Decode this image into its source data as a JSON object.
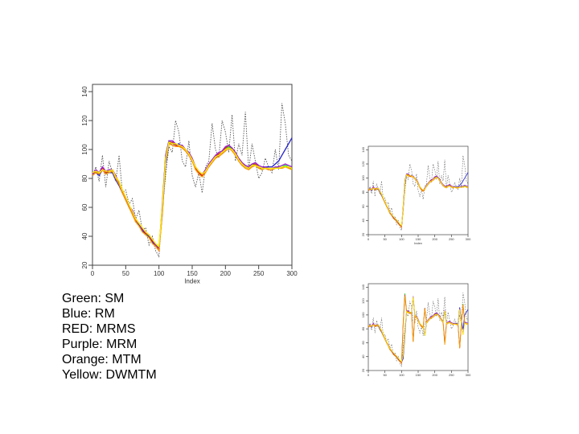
{
  "chart_data": [
    {
      "type": "line",
      "xlabel": "Index",
      "ylabel": "",
      "xlim": [
        0,
        300
      ],
      "ylim": [
        20,
        145
      ],
      "xticks": [
        0,
        50,
        100,
        150,
        200,
        250,
        300
      ],
      "yticks": [
        20,
        40,
        60,
        80,
        100,
        120,
        140
      ],
      "grid": false,
      "raw_series": {
        "color": "#555555",
        "x": [
          0,
          5,
          10,
          15,
          20,
          25,
          30,
          35,
          40,
          45,
          50,
          55,
          60,
          65,
          70,
          75,
          80,
          85,
          90,
          95,
          100,
          105,
          110,
          115,
          120,
          125,
          130,
          135,
          140,
          145,
          150,
          155,
          160,
          165,
          170,
          175,
          180,
          185,
          190,
          195,
          200,
          205,
          210,
          215,
          220,
          225,
          230,
          235,
          240,
          245,
          250,
          255,
          260,
          265,
          270,
          275,
          280,
          285,
          290,
          295,
          300
        ],
        "y": [
          82,
          88,
          78,
          96,
          74,
          92,
          84,
          78,
          96,
          70,
          72,
          62,
          66,
          52,
          58,
          44,
          46,
          34,
          40,
          30,
          26,
          58,
          82,
          102,
          98,
          120,
          112,
          92,
          88,
          106,
          82,
          74,
          84,
          70,
          88,
          92,
          118,
          100,
          94,
          120,
          112,
          98,
          124,
          92,
          104,
          96,
          126,
          86,
          104,
          92,
          80,
          84,
          94,
          88,
          84,
          100,
          86,
          132,
          118,
          96,
          92
        ]
      },
      "series": [
        {
          "name": "SM",
          "color": "#22cc22",
          "values": [
            83,
            85,
            83,
            86,
            84,
            84,
            85,
            80,
            76,
            70,
            66,
            60,
            56,
            50,
            48,
            44,
            42,
            40,
            36,
            34,
            32,
            60,
            96,
            106,
            104,
            104,
            103,
            102,
            100,
            97,
            93,
            88,
            84,
            82,
            85,
            89,
            92,
            94,
            96,
            98,
            100,
            102,
            100,
            97,
            93,
            90,
            88,
            87,
            89,
            90,
            88,
            86,
            88,
            86,
            86,
            88,
            87,
            88,
            89,
            88,
            86
          ]
        },
        {
          "name": "RM",
          "color": "#2222cc",
          "values": [
            82,
            84,
            82,
            86,
            83,
            84,
            84,
            79,
            75,
            70,
            65,
            60,
            56,
            50,
            48,
            44,
            41,
            40,
            36,
            33,
            32,
            55,
            90,
            104,
            104,
            103,
            104,
            101,
            99,
            96,
            92,
            87,
            83,
            82,
            85,
            88,
            91,
            94,
            96,
            97,
            99,
            101,
            100,
            96,
            92,
            89,
            88,
            87,
            88,
            89,
            87,
            87,
            88,
            88,
            88,
            90,
            92,
            96,
            100,
            104,
            108
          ]
        },
        {
          "name": "MRMS",
          "color": "#dd2222",
          "values": [
            83,
            85,
            84,
            87,
            84,
            85,
            86,
            81,
            77,
            71,
            66,
            61,
            57,
            51,
            49,
            45,
            42,
            41,
            37,
            34,
            31,
            58,
            94,
            105,
            105,
            103,
            102,
            102,
            100,
            96,
            92,
            87,
            84,
            82,
            85,
            89,
            92,
            95,
            97,
            98,
            101,
            103,
            101,
            98,
            93,
            90,
            89,
            88,
            90,
            90,
            88,
            87,
            87,
            86,
            86,
            87,
            87,
            87,
            88,
            88,
            87
          ]
        },
        {
          "name": "MRM",
          "color": "#9922cc",
          "values": [
            83,
            86,
            84,
            88,
            85,
            86,
            86,
            82,
            77,
            72,
            67,
            61,
            58,
            52,
            49,
            45,
            43,
            41,
            38,
            34,
            30,
            62,
            96,
            106,
            106,
            104,
            103,
            103,
            100,
            98,
            94,
            88,
            85,
            83,
            86,
            90,
            93,
            96,
            98,
            99,
            102,
            103,
            101,
            98,
            94,
            91,
            89,
            88,
            90,
            91,
            89,
            88,
            88,
            87,
            87,
            88,
            88,
            89,
            90,
            89,
            88
          ]
        },
        {
          "name": "MTM",
          "color": "#ff9900",
          "values": [
            82,
            84,
            83,
            86,
            83,
            84,
            85,
            80,
            76,
            70,
            65,
            60,
            55,
            50,
            47,
            43,
            41,
            39,
            35,
            33,
            30,
            56,
            92,
            104,
            103,
            102,
            102,
            101,
            99,
            96,
            92,
            86,
            83,
            81,
            84,
            88,
            91,
            94,
            95,
            97,
            99,
            101,
            99,
            96,
            92,
            89,
            87,
            86,
            88,
            89,
            87,
            86,
            87,
            86,
            86,
            87,
            87,
            87,
            88,
            87,
            86
          ]
        },
        {
          "name": "DWMTM",
          "color": "#ffee00",
          "values": [
            84,
            85,
            84,
            86,
            85,
            85,
            86,
            81,
            78,
            72,
            67,
            62,
            57,
            52,
            49,
            46,
            43,
            41,
            38,
            35,
            33,
            60,
            94,
            105,
            104,
            104,
            103,
            102,
            100,
            97,
            93,
            88,
            85,
            83,
            85,
            89,
            92,
            95,
            96,
            98,
            100,
            101,
            100,
            97,
            93,
            90,
            88,
            87,
            89,
            89,
            88,
            87,
            87,
            87,
            87,
            87,
            87,
            88,
            88,
            88,
            87
          ]
        }
      ]
    },
    {
      "type": "line",
      "xlabel": "Index",
      "ylabel": "",
      "xlim": [
        0,
        300
      ],
      "ylim": [
        20,
        145
      ],
      "xticks": [
        0,
        50,
        100,
        150,
        200,
        250,
        300
      ],
      "yticks": [
        20,
        40,
        60,
        80,
        100,
        120,
        140
      ],
      "grid": false,
      "variant": "small-top"
    },
    {
      "type": "line",
      "xlabel": "",
      "ylabel": "",
      "xlim": [
        0,
        300
      ],
      "ylim": [
        20,
        145
      ],
      "xticks": [
        0,
        50,
        100,
        150,
        200,
        250,
        300
      ],
      "yticks": [
        20,
        40,
        60,
        80,
        100,
        120,
        140
      ],
      "grid": false,
      "variant": "small-bottom"
    }
  ],
  "legend": [
    "Green: SM",
    "Blue: RM",
    "RED: MRMS",
    "Purple: MRM",
    "Orange: MTM",
    "Yellow: DWMTM"
  ]
}
